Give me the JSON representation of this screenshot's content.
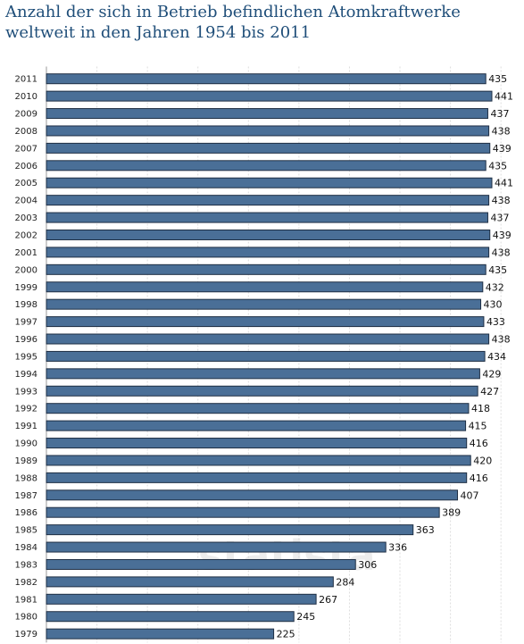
{
  "title_line1": "Anzahl der sich in Betrieb befindlichen Atomkraftwerke",
  "title_line2": "weltweit in den Jahren 1954 bis 2011",
  "watermark": "statista",
  "colors": {
    "bar": "#4a6f97",
    "bar_edge": "#1f2f44",
    "grid": "#dddddd",
    "title": "#1f4e79"
  },
  "chart_data": {
    "type": "bar",
    "orientation": "horizontal",
    "categories": [
      "2011",
      "2010",
      "2009",
      "2008",
      "2007",
      "2006",
      "2005",
      "2004",
      "2003",
      "2002",
      "2001",
      "2000",
      "1999",
      "1998",
      "1997",
      "1996",
      "1995",
      "1994",
      "1993",
      "1992",
      "1991",
      "1990",
      "1989",
      "1988",
      "1987",
      "1986",
      "1985",
      "1984",
      "1983",
      "1982",
      "1981",
      "1980",
      "1979"
    ],
    "values": [
      435,
      441,
      437,
      438,
      439,
      435,
      441,
      438,
      437,
      439,
      438,
      435,
      432,
      430,
      433,
      438,
      434,
      429,
      427,
      418,
      415,
      416,
      420,
      416,
      407,
      389,
      363,
      336,
      306,
      284,
      267,
      245,
      225
    ],
    "xlim": [
      0,
      450
    ],
    "grid": true
  }
}
